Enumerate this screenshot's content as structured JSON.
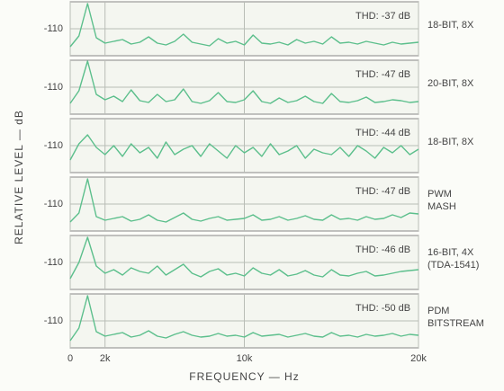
{
  "chart_data": [
    {
      "type": "line",
      "ylabel": "RELATIVE LEVEL — dB",
      "annotation": "THD: -37 dB",
      "label": [
        "18-BIT, 8X"
      ],
      "color": "#5cbf8c",
      "x": [
        0,
        500,
        1000,
        1500,
        2000,
        2500,
        3000,
        3500,
        4000,
        4500,
        5000,
        5500,
        6000,
        6500,
        7000,
        7500,
        8000,
        8500,
        9000,
        9500,
        10000,
        10500,
        11000,
        11500,
        12000,
        12500,
        13000,
        13500,
        14000,
        14500,
        15000,
        15500,
        16000,
        16500,
        17000,
        17500,
        18000,
        18500,
        19000,
        19500,
        20000
      ],
      "values": [
        -130,
        -118,
        -82,
        -120,
        -126,
        -124,
        -122,
        -127,
        -125,
        -119,
        -126,
        -128,
        -124,
        -116,
        -125,
        -127,
        -129,
        -121,
        -126,
        -124,
        -128,
        -117,
        -126,
        -127,
        -125,
        -128,
        -122,
        -126,
        -124,
        -127,
        -119,
        -126,
        -125,
        -127,
        -124,
        -126,
        -128,
        -125,
        -127,
        -126,
        -125
      ],
      "xlim": [
        0,
        20000
      ],
      "ylim": [
        -140,
        -80
      ],
      "yticks": [
        -110
      ]
    },
    {
      "type": "line",
      "annotation": "THD: -47 dB",
      "label": [
        "20-BIT, 8X"
      ],
      "color": "#5cbf8c",
      "x": [
        0,
        500,
        1000,
        1500,
        2000,
        2500,
        3000,
        3500,
        4000,
        4500,
        5000,
        5500,
        6000,
        6500,
        7000,
        7500,
        8000,
        8500,
        9000,
        9500,
        10000,
        10500,
        11000,
        11500,
        12000,
        12500,
        13000,
        13500,
        14000,
        14500,
        15000,
        15500,
        16000,
        16500,
        17000,
        17500,
        18000,
        18500,
        19000,
        19500,
        20000
      ],
      "values": [
        -128,
        -114,
        -81,
        -118,
        -124,
        -120,
        -126,
        -113,
        -125,
        -127,
        -118,
        -126,
        -124,
        -112,
        -126,
        -128,
        -125,
        -116,
        -126,
        -127,
        -124,
        -114,
        -126,
        -128,
        -122,
        -127,
        -125,
        -120,
        -126,
        -128,
        -117,
        -126,
        -127,
        -125,
        -121,
        -127,
        -126,
        -124,
        -125,
        -127,
        -126
      ],
      "xlim": [
        0,
        20000
      ],
      "ylim": [
        -140,
        -80
      ],
      "yticks": [
        -110
      ]
    },
    {
      "type": "line",
      "annotation": "THD: -44 dB",
      "label": [
        "18-BIT, 8X"
      ],
      "color": "#5cbf8c",
      "x": [
        0,
        500,
        1000,
        1500,
        2000,
        2500,
        3000,
        3500,
        4000,
        4500,
        5000,
        5500,
        6000,
        6500,
        7000,
        7500,
        8000,
        8500,
        9000,
        9500,
        10000,
        10500,
        11000,
        11500,
        12000,
        12500,
        13000,
        13500,
        14000,
        14500,
        15000,
        15500,
        16000,
        16500,
        17000,
        17500,
        18000,
        18500,
        19000,
        19500,
        20000
      ],
      "values": [
        -126,
        -108,
        -98,
        -112,
        -120,
        -110,
        -122,
        -108,
        -118,
        -112,
        -124,
        -106,
        -120,
        -114,
        -110,
        -122,
        -108,
        -116,
        -124,
        -110,
        -118,
        -112,
        -122,
        -108,
        -120,
        -116,
        -110,
        -124,
        -114,
        -118,
        -120,
        -112,
        -122,
        -110,
        -116,
        -124,
        -112,
        -118,
        -110,
        -120,
        -114
      ],
      "xlim": [
        0,
        20000
      ],
      "ylim": [
        -140,
        -80
      ],
      "yticks": [
        -110
      ]
    },
    {
      "type": "line",
      "annotation": "THD: -47 dB",
      "label": [
        "PWM",
        "MASH"
      ],
      "color": "#5cbf8c",
      "x": [
        0,
        500,
        1000,
        1500,
        2000,
        2500,
        3000,
        3500,
        4000,
        4500,
        5000,
        5500,
        6000,
        6500,
        7000,
        7500,
        8000,
        8500,
        9000,
        9500,
        10000,
        10500,
        11000,
        11500,
        12000,
        12500,
        13000,
        13500,
        14000,
        14500,
        15000,
        15500,
        16000,
        16500,
        17000,
        17500,
        18000,
        18500,
        19000,
        19500,
        20000
      ],
      "values": [
        -130,
        -120,
        -82,
        -124,
        -128,
        -126,
        -124,
        -129,
        -127,
        -122,
        -128,
        -130,
        -125,
        -120,
        -127,
        -129,
        -126,
        -124,
        -128,
        -127,
        -126,
        -122,
        -128,
        -127,
        -124,
        -128,
        -126,
        -123,
        -127,
        -128,
        -122,
        -127,
        -126,
        -128,
        -124,
        -127,
        -126,
        -122,
        -125,
        -120,
        -121
      ],
      "xlim": [
        0,
        20000
      ],
      "ylim": [
        -140,
        -80
      ],
      "yticks": [
        -110
      ]
    },
    {
      "type": "line",
      "annotation": "THD: -46 dB",
      "label": [
        "16-BIT, 4X",
        "(TDA-1541)"
      ],
      "color": "#5cbf8c",
      "x": [
        0,
        500,
        1000,
        1500,
        2000,
        2500,
        3000,
        3500,
        4000,
        4500,
        5000,
        5500,
        6000,
        6500,
        7000,
        7500,
        8000,
        8500,
        9000,
        9500,
        10000,
        10500,
        11000,
        11500,
        12000,
        12500,
        13000,
        13500,
        14000,
        14500,
        15000,
        15500,
        16000,
        16500,
        17000,
        17500,
        18000,
        18500,
        19000,
        19500,
        20000
      ],
      "values": [
        -128,
        -110,
        -82,
        -114,
        -122,
        -118,
        -124,
        -116,
        -120,
        -122,
        -114,
        -124,
        -118,
        -112,
        -122,
        -126,
        -120,
        -117,
        -124,
        -122,
        -125,
        -116,
        -122,
        -124,
        -118,
        -125,
        -123,
        -119,
        -124,
        -126,
        -118,
        -124,
        -125,
        -122,
        -120,
        -125,
        -124,
        -122,
        -120,
        -119,
        -118
      ],
      "xlim": [
        0,
        20000
      ],
      "ylim": [
        -140,
        -80
      ],
      "yticks": [
        -110
      ]
    },
    {
      "type": "line",
      "annotation": "THD: -50 dB",
      "label": [
        "PDM",
        "BITSTREAM"
      ],
      "color": "#5cbf8c",
      "xlabel": "FREQUENCY — Hz",
      "x": [
        0,
        500,
        1000,
        1500,
        2000,
        2500,
        3000,
        3500,
        4000,
        4500,
        5000,
        5500,
        6000,
        6500,
        7000,
        7500,
        8000,
        8500,
        9000,
        9500,
        10000,
        10500,
        11000,
        11500,
        12000,
        12500,
        13000,
        13500,
        14000,
        14500,
        15000,
        15500,
        16000,
        16500,
        17000,
        17500,
        18000,
        18500,
        19000,
        19500,
        20000
      ],
      "values": [
        -132,
        -118,
        -82,
        -122,
        -127,
        -125,
        -123,
        -128,
        -126,
        -121,
        -127,
        -129,
        -125,
        -122,
        -126,
        -128,
        -127,
        -124,
        -127,
        -126,
        -128,
        -123,
        -127,
        -126,
        -125,
        -128,
        -126,
        -124,
        -127,
        -128,
        -123,
        -127,
        -126,
        -128,
        -125,
        -127,
        -126,
        -124,
        -127,
        -125,
        -126
      ],
      "xlim": [
        0,
        20000
      ],
      "ylim": [
        -140,
        -80
      ],
      "yticks": [
        -110
      ],
      "xticks": [
        {
          "value": 0,
          "label": "0"
        },
        {
          "value": 2000,
          "label": "2k"
        },
        {
          "value": 10000,
          "label": "10k"
        },
        {
          "value": 20000,
          "label": "20k"
        }
      ]
    }
  ]
}
